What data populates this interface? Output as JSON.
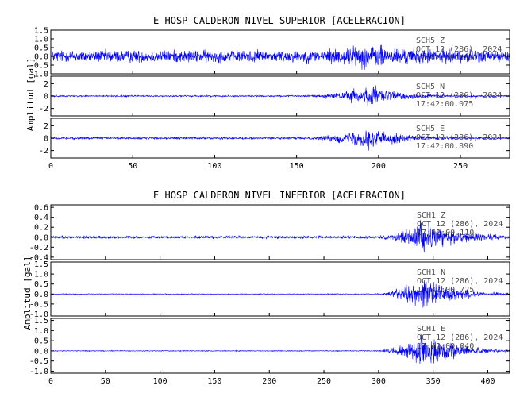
{
  "chart_data": [
    {
      "type": "line",
      "title": "E HOSP CALDERON NIVEL SUPERIOR [ACELERACION]",
      "ylabel": "Amplitud [gal]",
      "xlim": [
        0,
        280
      ],
      "xticks": [
        0,
        50,
        100,
        150,
        200,
        250
      ],
      "line_color": "#0000ff",
      "noise_amp": [
        0.5,
        0.18,
        0.25
      ],
      "event": {
        "start": 150,
        "peak": 195,
        "end": 245
      },
      "panels": [
        {
          "channel": "SCH5   Z",
          "date": "OCT 12 (286), 2024",
          "time": "17:42:00.550",
          "ylim": [
            -1.0,
            1.5
          ],
          "yticks": [
            1.5,
            1.0,
            0.5,
            0.0,
            -0.5,
            -1.0
          ],
          "peak": 1.2
        },
        {
          "channel": "SCH5   N",
          "date": "OCT 12 (286), 2024",
          "time": "17:42:00.075",
          "ylim": [
            -3.2,
            3.2
          ],
          "yticks": [
            2,
            0,
            -2
          ],
          "peak": 2.9
        },
        {
          "channel": "SCH5   E",
          "date": "OCT 12 (286), 2024",
          "time": "17:42:00.890",
          "ylim": [
            -3.2,
            3.2
          ],
          "yticks": [
            2,
            0,
            -2
          ],
          "peak": 2.9
        }
      ]
    },
    {
      "type": "line",
      "title": "E HOSP CALDERON NIVEL INFERIOR [ACELERACION]",
      "ylabel": "Amplitud [gal]",
      "xlim": [
        0,
        420
      ],
      "xticks": [
        0,
        50,
        100,
        150,
        200,
        250,
        300,
        350,
        400
      ],
      "line_color": "#0000ff",
      "noise_amp": [
        0.04,
        0.025,
        0.03
      ],
      "event": {
        "start": 295,
        "peak": 340,
        "end": 420
      },
      "panels": [
        {
          "channel": "SCH1   Z",
          "date": "OCT 12 (286), 2024",
          "time": "17:42:00.110",
          "ylim": [
            -0.45,
            0.65
          ],
          "yticks": [
            0.6,
            0.4,
            0.2,
            0.0,
            -0.2,
            -0.4
          ],
          "peak": 0.55
        },
        {
          "channel": "SCH1   N",
          "date": "OCT 12 (286), 2024",
          "time": "17:42:00.725",
          "ylim": [
            -1.1,
            1.6
          ],
          "yticks": [
            1.5,
            1.0,
            0.5,
            0.0,
            -0.5,
            -1.0
          ],
          "peak": 1.45
        },
        {
          "channel": "SCH1   E",
          "date": "OCT 12 (286), 2024",
          "time": "17:42:00.040",
          "ylim": [
            -1.1,
            1.6
          ],
          "yticks": [
            1.5,
            1.0,
            0.5,
            0.0,
            -0.5,
            -1.0
          ],
          "peak": 1.5
        }
      ]
    }
  ]
}
